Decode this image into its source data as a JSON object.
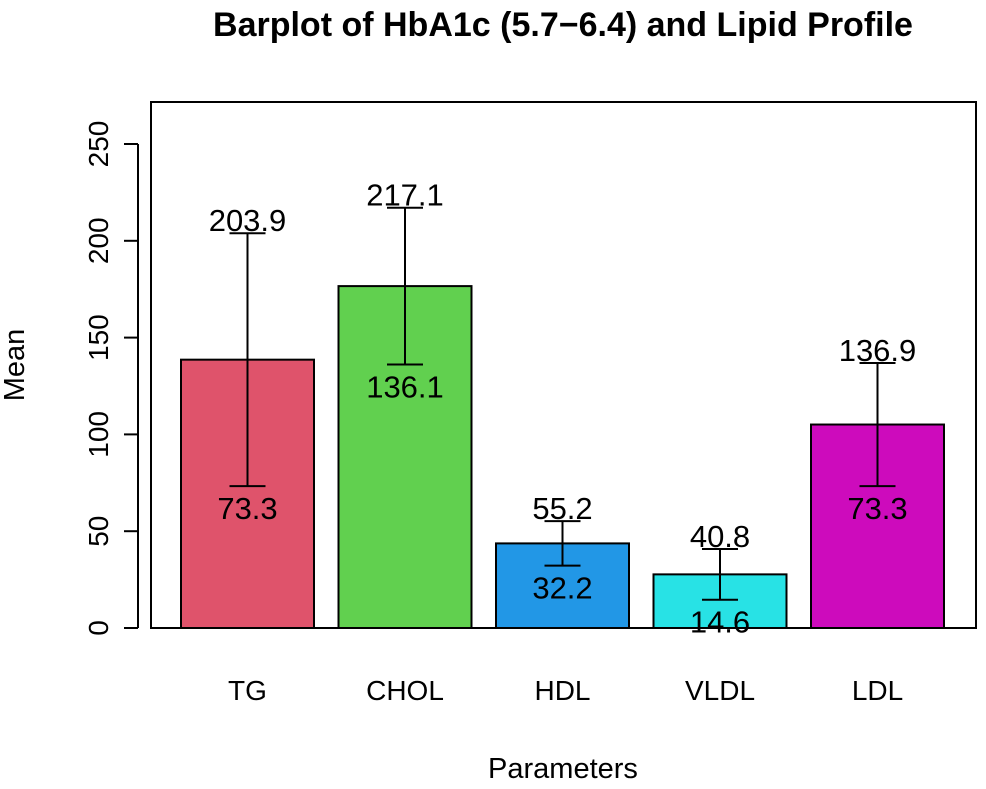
{
  "chart_data": {
    "type": "bar",
    "title": "Barplot of HbA1c (5.7−6.4) and Lipid Profile",
    "xlabel": "Parameters",
    "ylabel": "Mean",
    "ylim": [
      0,
      270
    ],
    "yticks": [
      0,
      50,
      100,
      150,
      200,
      250
    ],
    "grid": false,
    "legend": "none",
    "categories": [
      "TG",
      "CHOL",
      "HDL",
      "VLDL",
      "LDL"
    ],
    "values": [
      138.6,
      176.6,
      43.7,
      27.7,
      105.1
    ],
    "error_upper": [
      203.9,
      217.1,
      55.2,
      40.8,
      136.9
    ],
    "error_lower": [
      73.3,
      136.1,
      32.2,
      14.6,
      73.3
    ],
    "upper_labels": [
      "203.9",
      "217.1",
      "55.2",
      "40.8",
      "136.9"
    ],
    "lower_labels": [
      "73.3",
      "136.1",
      "32.2",
      "14.6",
      "73.3"
    ],
    "colors": [
      "#df536b",
      "#61d04f",
      "#2297e6",
      "#28e2e5",
      "#cd0bbc"
    ]
  }
}
